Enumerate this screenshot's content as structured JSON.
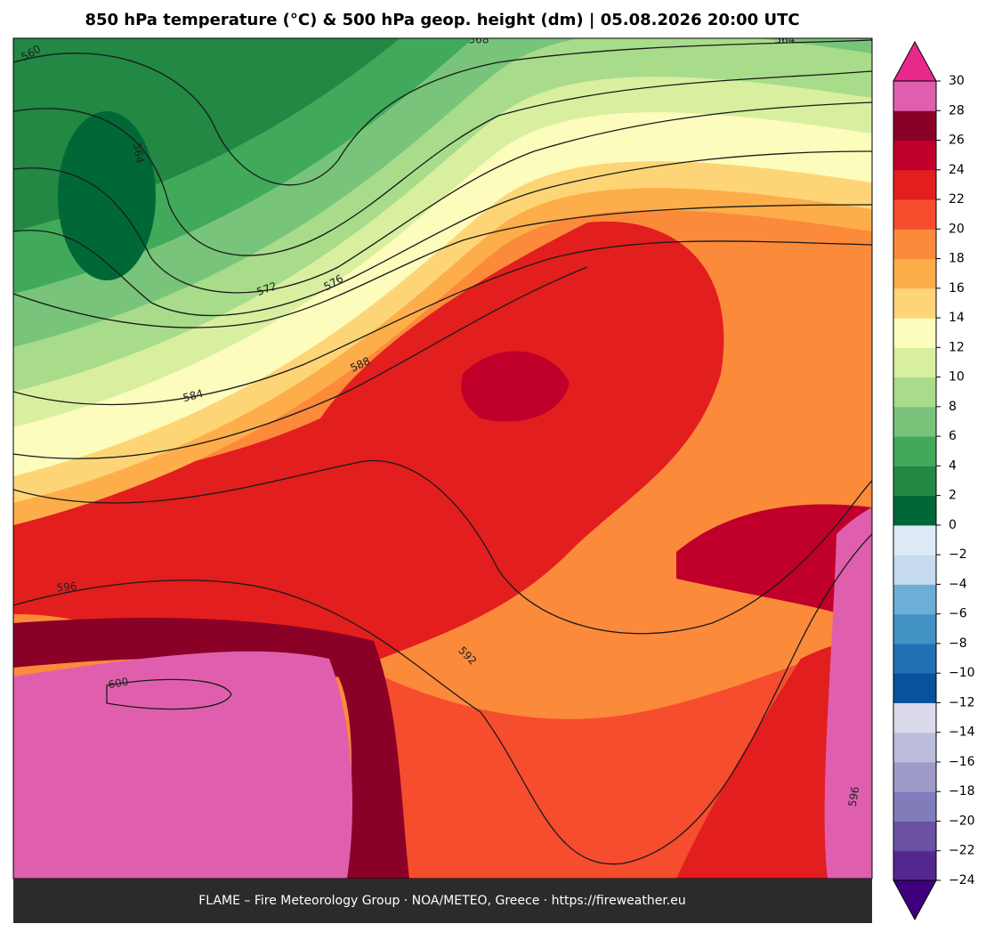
{
  "title": "850 hPa temperature (°C) & 500 hPa geop. height (dm)  |  05.08.2026 20:00 UTC",
  "colorbar": {
    "ticks": [
      {
        "value": -24,
        "label": "−24"
      },
      {
        "value": -22,
        "label": "−22"
      },
      {
        "value": -20,
        "label": "−20"
      },
      {
        "value": -18,
        "label": "−18"
      },
      {
        "value": -16,
        "label": "−16"
      },
      {
        "value": -14,
        "label": "−14"
      },
      {
        "value": -12,
        "label": "−12"
      },
      {
        "value": -10,
        "label": "−10"
      },
      {
        "value": -8,
        "label": "−8"
      },
      {
        "value": -6,
        "label": "−6"
      },
      {
        "value": -4,
        "label": "−4"
      },
      {
        "value": -2,
        "label": "−2"
      },
      0,
      2,
      4,
      6,
      8,
      10,
      12,
      14,
      16,
      18,
      20,
      22,
      24,
      26,
      28,
      30
    ],
    "colors": [
      "#54278f",
      "#6a51a3",
      "#807dba",
      "#9e9ac8",
      "#bcbddc",
      "#dadaeb",
      "#08519c",
      "#2171b5",
      "#4292c6",
      "#6baed6",
      "#c6dbef",
      "#deebf7",
      "#006837",
      "#228844",
      "#40aa5a",
      "#78c47a",
      "#a8dc8a",
      "#d8efa0",
      "#fcfcbc",
      "#fed576",
      "#fdae4a",
      "#fb8a3b",
      "#f64d2f",
      "#e31e1e",
      "#c0002a",
      "#8b0026",
      "#df5fae"
    ],
    "under_color": "#3f007d",
    "over_color": "#e7298a"
  },
  "map": {
    "contour_labels": [
      560,
      564,
      568,
      564,
      572,
      576,
      584,
      588,
      596,
      600,
      592,
      596
    ]
  },
  "footer": "FLAME – Fire Meteorology Group · NOA/METEO, Greece · https://fireweather.eu"
}
